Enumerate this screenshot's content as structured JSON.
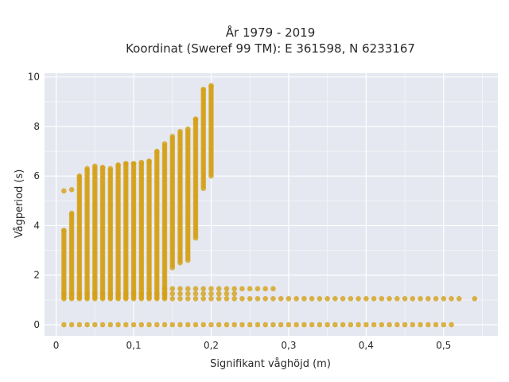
{
  "chart_data": {
    "type": "scatter",
    "title": "År 1979 - 2019",
    "subtitle": "Koordinat (Sweref 99 TM): E 361598, N 6233167",
    "xlabel": "Signifikant våghöjd (m)",
    "ylabel": "Vågperiod (s)",
    "xlim": [
      -0.015,
      0.57
    ],
    "ylim": [
      -0.45,
      10.15
    ],
    "xticks": [
      0,
      0.1,
      0.2,
      0.3,
      0.4,
      0.5
    ],
    "xtick_labels": [
      "0",
      "0,1",
      "0,2",
      "0,3",
      "0,4",
      "0,5"
    ],
    "yticks": [
      0,
      2,
      4,
      6,
      8,
      10
    ],
    "ytick_labels": [
      "0",
      "2",
      "4",
      "6",
      "8",
      "10"
    ],
    "grid": true,
    "marker_color": "#d4a017",
    "background": "#e5e8f0",
    "bands": [
      {
        "name": "zero",
        "y": 0.0,
        "x_from": 0.01,
        "x_to": 0.51,
        "step": 0.01
      },
      {
        "name": "low",
        "y": 1.05,
        "x_from": 0.01,
        "x_to": 0.52,
        "step": 0.01
      },
      {
        "name": "low",
        "y": 1.25,
        "x_from": 0.01,
        "x_to": 0.23,
        "step": 0.01
      },
      {
        "name": "low",
        "y": 1.45,
        "x_from": 0.14,
        "x_to": 0.27,
        "step": 0.01
      }
    ],
    "outliers": [
      {
        "x": 0.54,
        "y": 1.05
      },
      {
        "x": 0.28,
        "y": 1.45
      },
      {
        "x": 0.01,
        "y": 5.4
      },
      {
        "x": 0.02,
        "y": 5.45
      }
    ],
    "columns": [
      {
        "x": 0.01,
        "y_min": 1.1,
        "y_max": 3.8
      },
      {
        "x": 0.02,
        "y_min": 1.1,
        "y_max": 4.5
      },
      {
        "x": 0.03,
        "y_min": 1.1,
        "y_max": 6.0
      },
      {
        "x": 0.04,
        "y_min": 1.1,
        "y_max": 6.3
      },
      {
        "x": 0.05,
        "y_min": 1.1,
        "y_max": 6.4
      },
      {
        "x": 0.06,
        "y_min": 1.1,
        "y_max": 6.35
      },
      {
        "x": 0.07,
        "y_min": 1.1,
        "y_max": 6.3
      },
      {
        "x": 0.08,
        "y_min": 1.1,
        "y_max": 6.45
      },
      {
        "x": 0.09,
        "y_min": 1.1,
        "y_max": 6.5
      },
      {
        "x": 0.1,
        "y_min": 1.1,
        "y_max": 6.5
      },
      {
        "x": 0.11,
        "y_min": 1.1,
        "y_max": 6.55
      },
      {
        "x": 0.12,
        "y_min": 1.1,
        "y_max": 6.6
      },
      {
        "x": 0.13,
        "y_min": 1.1,
        "y_max": 7.0
      },
      {
        "x": 0.14,
        "y_min": 1.1,
        "y_max": 7.3
      },
      {
        "x": 0.15,
        "y_min": 2.3,
        "y_max": 7.6
      },
      {
        "x": 0.16,
        "y_min": 2.5,
        "y_max": 7.8
      },
      {
        "x": 0.17,
        "y_min": 2.6,
        "y_max": 7.9
      },
      {
        "x": 0.18,
        "y_min": 3.5,
        "y_max": 8.3
      },
      {
        "x": 0.19,
        "y_min": 5.5,
        "y_max": 9.5
      },
      {
        "x": 0.2,
        "y_min": 6.0,
        "y_max": 9.65
      }
    ]
  }
}
